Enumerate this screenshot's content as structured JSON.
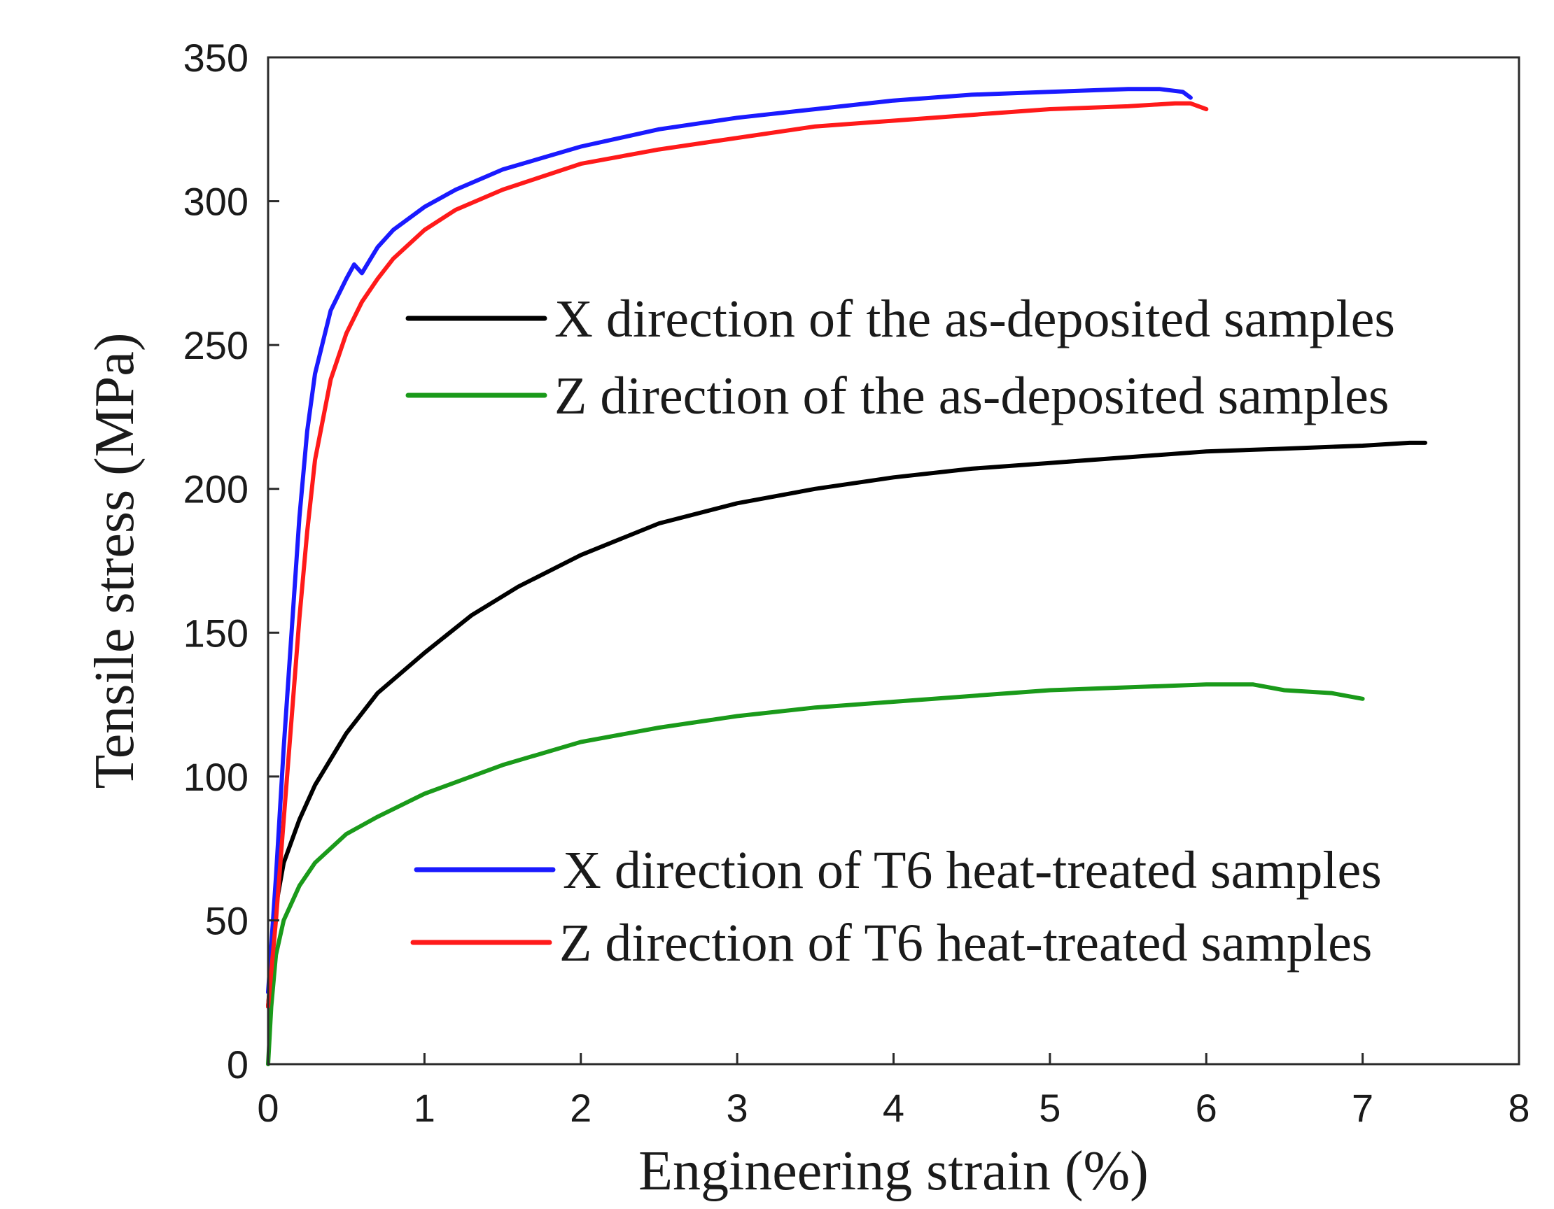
{
  "chart_data": {
    "type": "line",
    "title": "",
    "xlabel": "Engineering strain  (%)",
    "ylabel": "Tensile stress  (MPa)",
    "xlim": [
      0,
      8
    ],
    "ylim": [
      0,
      350
    ],
    "xticks": [
      "0",
      "1",
      "2",
      "3",
      "4",
      "5",
      "6",
      "7",
      "8"
    ],
    "yticks": [
      "0",
      "50",
      "100",
      "150",
      "200",
      "250",
      "300",
      "350"
    ],
    "grid": false,
    "series": [
      {
        "name": "X direction of the as-deposited samples",
        "color": "#000000",
        "x": [
          0,
          0.05,
          0.1,
          0.2,
          0.3,
          0.5,
          0.7,
          1.0,
          1.3,
          1.6,
          2.0,
          2.5,
          3.0,
          3.5,
          4.0,
          4.5,
          5.0,
          5.5,
          6.0,
          6.5,
          7.0,
          7.3,
          7.4
        ],
        "y": [
          20,
          55,
          70,
          85,
          97,
          115,
          129,
          143,
          156,
          166,
          177,
          188,
          195,
          200,
          204,
          207,
          209,
          211,
          213,
          214,
          215,
          216,
          216
        ]
      },
      {
        "name": "Z direction of the as-deposited samples",
        "color": "#1a9a1a",
        "x": [
          0,
          0.02,
          0.05,
          0.1,
          0.2,
          0.3,
          0.5,
          0.7,
          1.0,
          1.5,
          2.0,
          2.5,
          3.0,
          3.5,
          4.0,
          4.5,
          5.0,
          5.5,
          6.0,
          6.3,
          6.5,
          6.8,
          7.0
        ],
        "y": [
          0,
          20,
          38,
          50,
          62,
          70,
          80,
          86,
          94,
          104,
          112,
          117,
          121,
          124,
          126,
          128,
          130,
          131,
          132,
          132,
          130,
          129,
          127
        ]
      },
      {
        "name": "X direction of T6 heat-treated samples",
        "color": "#1a1aff",
        "x": [
          0,
          0.05,
          0.1,
          0.15,
          0.2,
          0.25,
          0.3,
          0.4,
          0.5,
          0.55,
          0.6,
          0.7,
          0.8,
          1.0,
          1.2,
          1.5,
          2.0,
          2.5,
          3.0,
          3.5,
          4.0,
          4.5,
          5.0,
          5.5,
          5.7,
          5.85,
          5.9
        ],
        "y": [
          25,
          65,
          110,
          150,
          190,
          220,
          240,
          262,
          273,
          278,
          275,
          284,
          290,
          298,
          304,
          311,
          319,
          325,
          329,
          332,
          335,
          337,
          338,
          339,
          339,
          338,
          336
        ]
      },
      {
        "name": "Z direction of T6 heat-treated samples",
        "color": "#ff1a1a",
        "x": [
          0,
          0.05,
          0.1,
          0.15,
          0.2,
          0.25,
          0.3,
          0.4,
          0.5,
          0.6,
          0.7,
          0.8,
          1.0,
          1.2,
          1.5,
          2.0,
          2.5,
          3.0,
          3.5,
          4.0,
          4.5,
          5.0,
          5.5,
          5.8,
          5.9,
          6.0
        ],
        "y": [
          20,
          50,
          85,
          120,
          155,
          185,
          210,
          238,
          254,
          265,
          273,
          280,
          290,
          297,
          304,
          313,
          318,
          322,
          326,
          328,
          330,
          332,
          333,
          334,
          334,
          332
        ]
      }
    ],
    "legend": [
      {
        "label": "X direction of the as-deposited samples",
        "series": 0,
        "position": "upper"
      },
      {
        "label": "Z direction of the as-deposited samples",
        "series": 1,
        "position": "upper"
      },
      {
        "label": "X direction of T6 heat-treated samples",
        "series": 2,
        "position": "lower"
      },
      {
        "label": "Z direction of T6 heat-treated samples",
        "series": 3,
        "position": "lower"
      }
    ]
  }
}
